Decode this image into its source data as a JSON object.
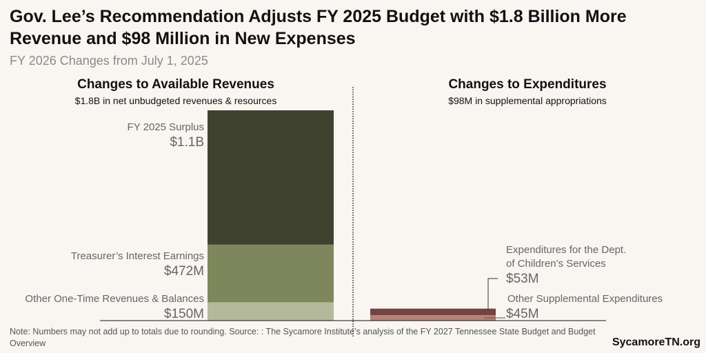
{
  "title": "Gov. Lee’s Recommendation Adjusts FY 2025 Budget with $1.8 Billion More Revenue and $98 Million in New Expenses",
  "subtitle": "FY 2026 Changes from July 1, 2025",
  "note": "Note: Numbers may not add up to totals due to rounding. Source: : The Sycamore Institute’s analysis of the FY 2027 Tennessee State Budget and Budget Overview",
  "brand": "SycamoreTN.org",
  "chart_data": [
    {
      "type": "bar",
      "stacked": true,
      "title": "Changes to Available Revenues",
      "subtitle": "$1.8B in net unbudgeted revenues & resources",
      "unit": "millions USD",
      "series": [
        {
          "name": "Other One-Time Revenues & Balances",
          "value": 150,
          "label": "$150M",
          "color": "#b5b99b"
        },
        {
          "name": "Treasurer’s Interest Earnings",
          "value": 472,
          "label": "$472M",
          "color": "#7e875c"
        },
        {
          "name": "FY 2025 Surplus",
          "value": 1100,
          "label": "$1.1B",
          "color": "#3f422e"
        }
      ]
    },
    {
      "type": "bar",
      "stacked": true,
      "title": "Changes to Expenditures",
      "subtitle": "$98M in supplemental appropriations",
      "unit": "millions USD",
      "series": [
        {
          "name": "Other Supplemental Expenditures",
          "value": 45,
          "label": "$45M",
          "color": "#b6827c"
        },
        {
          "name": "Expenditures for the Dept. of Children’s Services",
          "value": 53,
          "label": "$53M",
          "color": "#74433f"
        }
      ]
    }
  ]
}
